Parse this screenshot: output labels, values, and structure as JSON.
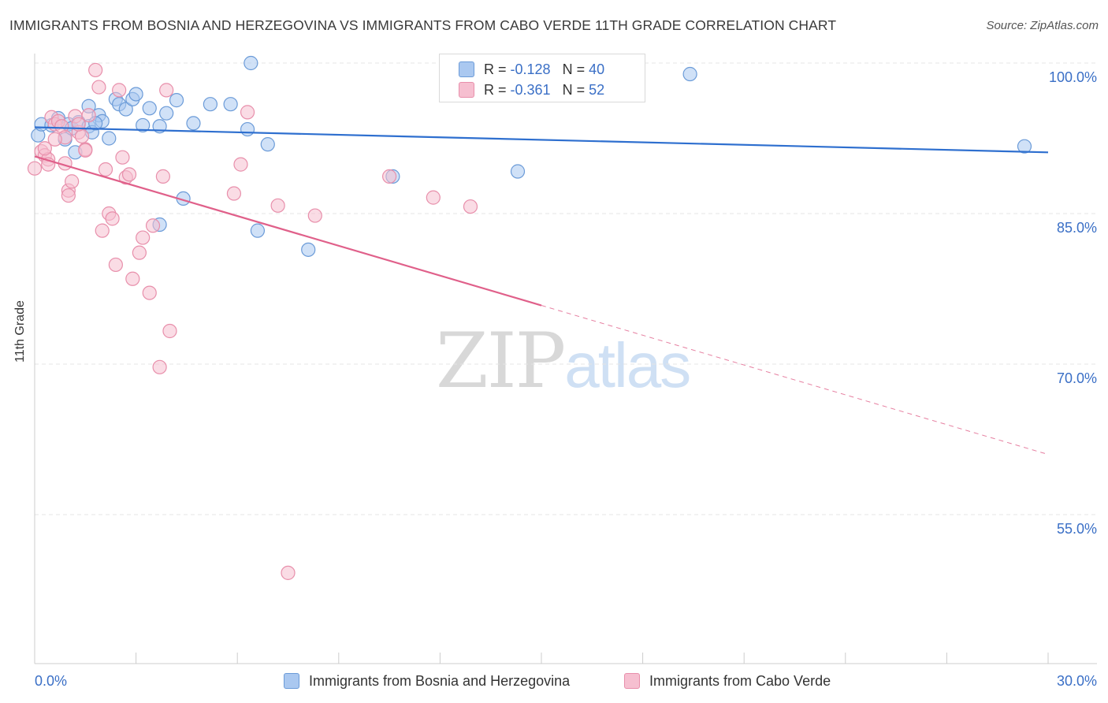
{
  "title": "IMMIGRANTS FROM BOSNIA AND HERZEGOVINA VS IMMIGRANTS FROM CABO VERDE 11TH GRADE CORRELATION CHART",
  "source": "Source: ZipAtlas.com",
  "watermark": {
    "zip": "ZIP",
    "atlas": "atlas"
  },
  "legend_top": [
    {
      "r_label": "R =",
      "r_value": "-0.128",
      "n_label": "N =",
      "n_value": "40"
    },
    {
      "r_label": "R =",
      "r_value": "-0.361",
      "n_label": "N =",
      "n_value": "52"
    }
  ],
  "colors": {
    "blue_fill": "#aac8f0",
    "blue_edge": "#6b9bd8",
    "blue_line": "#2e6fcf",
    "pink_fill": "#f6bfd0",
    "pink_edge": "#e88fab",
    "pink_line": "#e0608a",
    "tick_label": "#3a6fc6",
    "grid": "#e4e4e4"
  },
  "chart_data": {
    "type": "scatter",
    "title": "IMMIGRANTS FROM BOSNIA AND HERZEGOVINA VS IMMIGRANTS FROM CABO VERDE 11TH GRADE CORRELATION CHART",
    "xlabel": "",
    "ylabel": "11th Grade",
    "xlim": [
      0,
      30
    ],
    "ylim": [
      40,
      102
    ],
    "x_ticks_labeled": [
      {
        "value": 0,
        "label": "0.0%"
      },
      {
        "value": 30,
        "label": "30.0%"
      }
    ],
    "x_ticks": [
      0,
      3,
      6,
      9,
      12,
      15,
      18,
      21,
      24,
      27,
      30
    ],
    "y_ticks": [
      {
        "value": 100,
        "label": "100.0%"
      },
      {
        "value": 85,
        "label": "85.0%"
      },
      {
        "value": 70,
        "label": "70.0%"
      },
      {
        "value": 55,
        "label": "55.0%"
      }
    ],
    "grid": "horizontal dashed",
    "legend_position": "bottom",
    "series": [
      {
        "name": "Immigrants from Bosnia and Herzegovina",
        "color": "blue",
        "points": [
          [
            0.1,
            92.8
          ],
          [
            0.2,
            93.9
          ],
          [
            0.5,
            93.8
          ],
          [
            0.7,
            94.5
          ],
          [
            0.9,
            92.4
          ],
          [
            1.0,
            93.9
          ],
          [
            1.1,
            93.5
          ],
          [
            1.2,
            91.1
          ],
          [
            1.3,
            94.1
          ],
          [
            1.6,
            93.7
          ],
          [
            1.6,
            95.7
          ],
          [
            1.7,
            93.1
          ],
          [
            1.9,
            94.8
          ],
          [
            2.0,
            94.2
          ],
          [
            2.2,
            92.5
          ],
          [
            2.4,
            96.4
          ],
          [
            2.5,
            95.9
          ],
          [
            2.7,
            95.4
          ],
          [
            2.9,
            96.4
          ],
          [
            3.0,
            96.9
          ],
          [
            3.2,
            93.8
          ],
          [
            3.4,
            95.5
          ],
          [
            3.7,
            93.7
          ],
          [
            3.9,
            95.0
          ],
          [
            4.2,
            96.3
          ],
          [
            4.4,
            86.5
          ],
          [
            4.7,
            94.0
          ],
          [
            5.2,
            95.9
          ],
          [
            5.8,
            95.9
          ],
          [
            6.3,
            93.4
          ],
          [
            6.4,
            100.0
          ],
          [
            6.6,
            83.3
          ],
          [
            6.9,
            91.9
          ],
          [
            8.1,
            81.4
          ],
          [
            10.6,
            88.7
          ],
          [
            14.3,
            89.2
          ],
          [
            19.4,
            98.9
          ],
          [
            29.3,
            91.7
          ],
          [
            3.7,
            83.9
          ],
          [
            1.8,
            94.0
          ]
        ],
        "trend": {
          "x": [
            0,
            30
          ],
          "y": [
            93.6,
            91.1
          ],
          "dashed_from": null
        }
      },
      {
        "name": "Immigrants from Cabo Verde",
        "color": "pink",
        "points": [
          [
            0.0,
            89.5
          ],
          [
            0.2,
            91.2
          ],
          [
            0.3,
            90.8
          ],
          [
            0.4,
            90.4
          ],
          [
            0.5,
            94.6
          ],
          [
            0.6,
            93.9
          ],
          [
            0.7,
            94.2
          ],
          [
            0.8,
            93.7
          ],
          [
            0.9,
            90.0
          ],
          [
            1.0,
            87.3
          ],
          [
            1.0,
            86.8
          ],
          [
            1.1,
            88.2
          ],
          [
            1.2,
            94.7
          ],
          [
            1.3,
            93.1
          ],
          [
            1.4,
            92.7
          ],
          [
            1.5,
            91.4
          ],
          [
            1.6,
            94.8
          ],
          [
            1.8,
            99.3
          ],
          [
            1.9,
            97.6
          ],
          [
            2.0,
            83.3
          ],
          [
            2.1,
            89.4
          ],
          [
            2.2,
            85.0
          ],
          [
            2.3,
            84.5
          ],
          [
            2.4,
            79.9
          ],
          [
            2.5,
            97.3
          ],
          [
            2.6,
            90.6
          ],
          [
            2.7,
            88.6
          ],
          [
            2.8,
            88.9
          ],
          [
            2.9,
            78.5
          ],
          [
            3.1,
            81.1
          ],
          [
            3.2,
            82.6
          ],
          [
            3.4,
            77.1
          ],
          [
            3.5,
            83.8
          ],
          [
            3.7,
            69.7
          ],
          [
            3.8,
            88.7
          ],
          [
            3.9,
            97.3
          ],
          [
            4.0,
            73.3
          ],
          [
            5.9,
            87.0
          ],
          [
            6.1,
            89.9
          ],
          [
            6.3,
            95.1
          ],
          [
            7.2,
            85.8
          ],
          [
            7.5,
            49.2
          ],
          [
            8.3,
            84.8
          ],
          [
            10.5,
            88.7
          ],
          [
            11.8,
            86.6
          ],
          [
            12.9,
            85.7
          ],
          [
            0.4,
            89.9
          ],
          [
            0.9,
            92.6
          ],
          [
            1.3,
            93.9
          ],
          [
            0.6,
            92.4
          ],
          [
            1.5,
            91.3
          ],
          [
            0.3,
            91.5
          ]
        ],
        "trend": {
          "x": [
            0,
            30
          ],
          "y": [
            90.7,
            61.0
          ],
          "dashed_from": 15
        }
      }
    ]
  }
}
